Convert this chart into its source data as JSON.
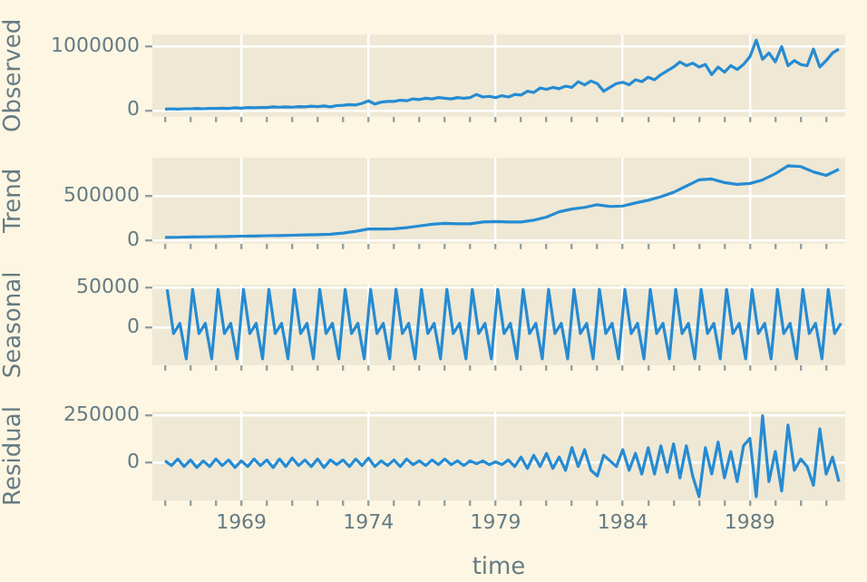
{
  "chart_data": [
    {
      "type": "line",
      "ylabel": "Observed",
      "color": "#268bd2",
      "grid": true,
      "tick_labels": "y",
      "xlim": [
        "1965-07",
        "1992-10"
      ],
      "ylim": [
        -100000,
        1190000
      ],
      "yticks": [
        0,
        1000000
      ],
      "xticks": [
        {
          "value": "1966",
          "label": null
        },
        {
          "value": "1967",
          "label": null
        },
        {
          "value": "1968",
          "label": null
        },
        "1969",
        {
          "value": "1970",
          "label": null
        },
        {
          "value": "1971",
          "label": null
        },
        {
          "value": "1972",
          "label": null
        },
        {
          "value": "1973",
          "label": null
        },
        "1974",
        {
          "value": "1975",
          "label": null
        },
        {
          "value": "1976",
          "label": null
        },
        {
          "value": "1977",
          "label": null
        },
        {
          "value": "1978",
          "label": null
        },
        "1979",
        {
          "value": "1980",
          "label": null
        },
        {
          "value": "1981",
          "label": null
        },
        {
          "value": "1982",
          "label": null
        },
        {
          "value": "1983",
          "label": null
        },
        "1984",
        {
          "value": "1985",
          "label": null
        },
        {
          "value": "1986",
          "label": null
        },
        {
          "value": "1987",
          "label": null
        },
        {
          "value": "1988",
          "label": null
        },
        "1989",
        {
          "value": "1990",
          "label": null
        },
        {
          "value": "1991",
          "label": null
        },
        {
          "value": "1992",
          "label": null
        }
      ],
      "x": [
        "1966-01",
        "1966-04",
        "1966-07",
        "1966-10",
        "1967-01",
        "1967-04",
        "1967-07",
        "1967-10",
        "1968-01",
        "1968-04",
        "1968-07",
        "1968-10",
        "1969-01",
        "1969-04",
        "1969-07",
        "1969-10",
        "1970-01",
        "1970-04",
        "1970-07",
        "1970-10",
        "1971-01",
        "1971-04",
        "1971-07",
        "1971-10",
        "1972-01",
        "1972-04",
        "1972-07",
        "1972-10",
        "1973-01",
        "1973-04",
        "1973-07",
        "1973-10",
        "1974-01",
        "1974-04",
        "1974-07",
        "1974-10",
        "1975-01",
        "1975-04",
        "1975-07",
        "1975-10",
        "1976-01",
        "1976-04",
        "1976-07",
        "1976-10",
        "1977-01",
        "1977-04",
        "1977-07",
        "1977-10",
        "1978-01",
        "1978-04",
        "1978-07",
        "1978-10",
        "1979-01",
        "1979-04",
        "1979-07",
        "1979-10",
        "1980-01",
        "1980-04",
        "1980-07",
        "1980-10",
        "1981-01",
        "1981-04",
        "1981-07",
        "1981-10",
        "1982-01",
        "1982-04",
        "1982-07",
        "1982-10",
        "1983-01",
        "1983-04",
        "1983-07",
        "1983-10",
        "1984-01",
        "1984-04",
        "1984-07",
        "1984-10",
        "1985-01",
        "1985-04",
        "1985-07",
        "1985-10",
        "1986-01",
        "1986-04",
        "1986-07",
        "1986-10",
        "1987-01",
        "1987-04",
        "1987-07",
        "1987-10",
        "1988-01",
        "1988-04",
        "1988-07",
        "1988-10",
        "1989-01",
        "1989-04",
        "1989-07",
        "1989-10",
        "1990-01",
        "1990-04",
        "1990-07",
        "1990-10",
        "1991-01",
        "1991-04",
        "1991-07",
        "1991-10",
        "1992-01",
        "1992-04",
        "1992-07"
      ],
      "values": [
        20000,
        25000,
        20000,
        25000,
        25000,
        30000,
        25000,
        30000,
        30000,
        35000,
        30000,
        40000,
        35000,
        45000,
        40000,
        45000,
        45000,
        55000,
        50000,
        55000,
        50000,
        60000,
        55000,
        65000,
        60000,
        70000,
        55000,
        75000,
        80000,
        90000,
        85000,
        110000,
        150000,
        100000,
        130000,
        140000,
        140000,
        160000,
        150000,
        180000,
        170000,
        190000,
        180000,
        200000,
        190000,
        180000,
        200000,
        190000,
        200000,
        250000,
        210000,
        220000,
        200000,
        230000,
        210000,
        250000,
        240000,
        300000,
        280000,
        350000,
        330000,
        360000,
        340000,
        380000,
        360000,
        450000,
        400000,
        460000,
        420000,
        300000,
        360000,
        420000,
        440000,
        400000,
        480000,
        450000,
        520000,
        480000,
        560000,
        620000,
        680000,
        760000,
        700000,
        740000,
        680000,
        720000,
        560000,
        680000,
        600000,
        700000,
        640000,
        720000,
        840000,
        1100000,
        800000,
        900000,
        760000,
        1000000,
        700000,
        780000,
        720000,
        700000,
        960000,
        680000,
        780000,
        900000,
        960000
      ]
    },
    {
      "type": "line",
      "ylabel": "Trend",
      "color": "#268bd2",
      "grid": true,
      "tick_labels": "y",
      "xlim": [
        "1965-07",
        "1992-10"
      ],
      "ylim": [
        -40000,
        930000
      ],
      "yticks": [
        0,
        500000
      ],
      "xticks": [
        {
          "value": "1966",
          "label": null
        },
        {
          "value": "1967",
          "label": null
        },
        {
          "value": "1968",
          "label": null
        },
        "1969",
        {
          "value": "1970",
          "label": null
        },
        {
          "value": "1971",
          "label": null
        },
        {
          "value": "1972",
          "label": null
        },
        {
          "value": "1973",
          "label": null
        },
        "1974",
        {
          "value": "1975",
          "label": null
        },
        {
          "value": "1976",
          "label": null
        },
        {
          "value": "1977",
          "label": null
        },
        {
          "value": "1978",
          "label": null
        },
        "1979",
        {
          "value": "1980",
          "label": null
        },
        {
          "value": "1981",
          "label": null
        },
        {
          "value": "1982",
          "label": null
        },
        {
          "value": "1983",
          "label": null
        },
        "1984",
        {
          "value": "1985",
          "label": null
        },
        {
          "value": "1986",
          "label": null
        },
        {
          "value": "1987",
          "label": null
        },
        {
          "value": "1988",
          "label": null
        },
        "1989",
        {
          "value": "1990",
          "label": null
        },
        {
          "value": "1991",
          "label": null
        },
        {
          "value": "1992",
          "label": null
        }
      ],
      "x": [
        "1966-01",
        "1966-07",
        "1967-01",
        "1967-07",
        "1968-01",
        "1968-07",
        "1969-01",
        "1969-07",
        "1970-01",
        "1970-07",
        "1971-01",
        "1971-07",
        "1972-01",
        "1972-07",
        "1973-01",
        "1973-07",
        "1974-01",
        "1974-07",
        "1975-01",
        "1975-07",
        "1976-01",
        "1976-07",
        "1977-01",
        "1977-07",
        "1978-01",
        "1978-07",
        "1979-01",
        "1979-07",
        "1980-01",
        "1980-07",
        "1981-01",
        "1981-07",
        "1982-01",
        "1982-07",
        "1983-01",
        "1983-07",
        "1984-01",
        "1984-07",
        "1985-01",
        "1985-07",
        "1986-01",
        "1986-07",
        "1987-01",
        "1987-07",
        "1988-01",
        "1988-07",
        "1989-01",
        "1989-07",
        "1990-01",
        "1990-07",
        "1991-01",
        "1991-07",
        "1992-01",
        "1992-07"
      ],
      "values": [
        30000,
        32000,
        35000,
        37000,
        40000,
        42000,
        45000,
        47000,
        50000,
        52000,
        55000,
        58000,
        62000,
        66000,
        80000,
        100000,
        125000,
        125000,
        128000,
        140000,
        160000,
        180000,
        190000,
        185000,
        185000,
        205000,
        210000,
        205000,
        205000,
        225000,
        260000,
        320000,
        350000,
        370000,
        400000,
        380000,
        385000,
        420000,
        450000,
        490000,
        540000,
        610000,
        680000,
        690000,
        650000,
        630000,
        640000,
        680000,
        750000,
        840000,
        830000,
        770000,
        730000,
        800000
      ]
    },
    {
      "type": "line",
      "ylabel": "Seasonal",
      "color": "#268bd2",
      "grid": true,
      "tick_labels": "y",
      "xlim": [
        "1965-07",
        "1992-10"
      ],
      "ylim": [
        -48000,
        54000
      ],
      "yticks": [
        0,
        50000
      ],
      "xticks": [
        {
          "value": "1966",
          "label": null
        },
        {
          "value": "1967",
          "label": null
        },
        {
          "value": "1968",
          "label": null
        },
        "1969",
        {
          "value": "1970",
          "label": null
        },
        {
          "value": "1971",
          "label": null
        },
        {
          "value": "1972",
          "label": null
        },
        {
          "value": "1973",
          "label": null
        },
        "1974",
        {
          "value": "1975",
          "label": null
        },
        {
          "value": "1976",
          "label": null
        },
        {
          "value": "1977",
          "label": null
        },
        {
          "value": "1978",
          "label": null
        },
        "1979",
        {
          "value": "1980",
          "label": null
        },
        {
          "value": "1981",
          "label": null
        },
        {
          "value": "1982",
          "label": null
        },
        {
          "value": "1983",
          "label": null
        },
        "1984",
        {
          "value": "1985",
          "label": null
        },
        {
          "value": "1986",
          "label": null
        },
        {
          "value": "1987",
          "label": null
        },
        {
          "value": "1988",
          "label": null
        },
        "1989",
        {
          "value": "1990",
          "label": null
        },
        {
          "value": "1991",
          "label": null
        },
        {
          "value": "1992",
          "label": null
        }
      ],
      "x": [
        "1966-02",
        "1966-05",
        "1966-08",
        "1966-11",
        "1967-02",
        "1967-05",
        "1967-08",
        "1967-11",
        "1968-02",
        "1968-05",
        "1968-08",
        "1968-11",
        "1969-02",
        "1969-05",
        "1969-08",
        "1969-11",
        "1970-02",
        "1970-05",
        "1970-08",
        "1970-11",
        "1971-02",
        "1971-05",
        "1971-08",
        "1971-11",
        "1972-02",
        "1972-05",
        "1972-08",
        "1972-11",
        "1973-02",
        "1973-05",
        "1973-08",
        "1973-11",
        "1974-02",
        "1974-05",
        "1974-08",
        "1974-11",
        "1975-02",
        "1975-05",
        "1975-08",
        "1975-11",
        "1976-02",
        "1976-05",
        "1976-08",
        "1976-11",
        "1977-02",
        "1977-05",
        "1977-08",
        "1977-11",
        "1978-02",
        "1978-05",
        "1978-08",
        "1978-11",
        "1979-02",
        "1979-05",
        "1979-08",
        "1979-11",
        "1980-02",
        "1980-05",
        "1980-08",
        "1980-11",
        "1981-02",
        "1981-05",
        "1981-08",
        "1981-11",
        "1982-02",
        "1982-05",
        "1982-08",
        "1982-11",
        "1983-02",
        "1983-05",
        "1983-08",
        "1983-11",
        "1984-02",
        "1984-05",
        "1984-08",
        "1984-11",
        "1985-02",
        "1985-05",
        "1985-08",
        "1985-11",
        "1986-02",
        "1986-05",
        "1986-08",
        "1986-11",
        "1987-02",
        "1987-05",
        "1987-08",
        "1987-11",
        "1988-02",
        "1988-05",
        "1988-08",
        "1988-11",
        "1989-02",
        "1989-05",
        "1989-08",
        "1989-11",
        "1990-02",
        "1990-05",
        "1990-08",
        "1990-11",
        "1991-02",
        "1991-05",
        "1991-08",
        "1991-11",
        "1992-02",
        "1992-05",
        "1992-08"
      ],
      "values": [
        48000,
        -8000,
        5000,
        -40000,
        48000,
        -8000,
        5000,
        -40000,
        48000,
        -8000,
        5000,
        -40000,
        48000,
        -8000,
        5000,
        -40000,
        48000,
        -8000,
        5000,
        -40000,
        48000,
        -8000,
        5000,
        -40000,
        48000,
        -8000,
        5000,
        -40000,
        48000,
        -8000,
        5000,
        -40000,
        48000,
        -8000,
        5000,
        -40000,
        48000,
        -8000,
        5000,
        -40000,
        48000,
        -8000,
        5000,
        -40000,
        48000,
        -8000,
        5000,
        -40000,
        48000,
        -8000,
        5000,
        -40000,
        48000,
        -8000,
        5000,
        -40000,
        48000,
        -8000,
        5000,
        -40000,
        48000,
        -8000,
        5000,
        -40000,
        48000,
        -8000,
        5000,
        -40000,
        48000,
        -8000,
        5000,
        -40000,
        48000,
        -8000,
        5000,
        -40000,
        48000,
        -8000,
        5000,
        -40000,
        48000,
        -8000,
        5000,
        -40000,
        48000,
        -8000,
        5000,
        -40000,
        48000,
        -8000,
        5000,
        -40000,
        48000,
        -8000,
        5000,
        -40000,
        48000,
        -8000,
        5000,
        -40000,
        48000,
        -8000,
        5000,
        -40000,
        48000,
        -8000,
        5000
      ]
    },
    {
      "type": "line",
      "ylabel": "Residual",
      "xlabel": "time",
      "color": "#268bd2",
      "grid": true,
      "xlim": [
        "1965-07",
        "1992-10"
      ],
      "ylim": [
        -200000,
        272000
      ],
      "yticks": [
        0,
        250000
      ],
      "xticks": [
        {
          "value": "1966",
          "label": null
        },
        {
          "value": "1967",
          "label": null
        },
        {
          "value": "1968",
          "label": null
        },
        "1969",
        {
          "value": "1970",
          "label": null
        },
        {
          "value": "1971",
          "label": null
        },
        {
          "value": "1972",
          "label": null
        },
        {
          "value": "1973",
          "label": null
        },
        "1974",
        {
          "value": "1975",
          "label": null
        },
        {
          "value": "1976",
          "label": null
        },
        {
          "value": "1977",
          "label": null
        },
        {
          "value": "1978",
          "label": null
        },
        "1979",
        {
          "value": "1980",
          "label": null
        },
        {
          "value": "1981",
          "label": null
        },
        {
          "value": "1982",
          "label": null
        },
        {
          "value": "1983",
          "label": null
        },
        "1984",
        {
          "value": "1985",
          "label": null
        },
        {
          "value": "1986",
          "label": null
        },
        {
          "value": "1987",
          "label": null
        },
        {
          "value": "1988",
          "label": null
        },
        "1989",
        {
          "value": "1990",
          "label": null
        },
        {
          "value": "1991",
          "label": null
        },
        {
          "value": "1992",
          "label": null
        }
      ],
      "x": [
        "1966-01",
        "1966-04",
        "1966-07",
        "1966-10",
        "1967-01",
        "1967-04",
        "1967-07",
        "1967-10",
        "1968-01",
        "1968-04",
        "1968-07",
        "1968-10",
        "1969-01",
        "1969-04",
        "1969-07",
        "1969-10",
        "1970-01",
        "1970-04",
        "1970-07",
        "1970-10",
        "1971-01",
        "1971-04",
        "1971-07",
        "1971-10",
        "1972-01",
        "1972-04",
        "1972-07",
        "1972-10",
        "1973-01",
        "1973-04",
        "1973-07",
        "1973-10",
        "1974-01",
        "1974-04",
        "1974-07",
        "1974-10",
        "1975-01",
        "1975-04",
        "1975-07",
        "1975-10",
        "1976-01",
        "1976-04",
        "1976-07",
        "1976-10",
        "1977-01",
        "1977-04",
        "1977-07",
        "1977-10",
        "1978-01",
        "1978-04",
        "1978-07",
        "1978-10",
        "1979-01",
        "1979-04",
        "1979-07",
        "1979-10",
        "1980-01",
        "1980-04",
        "1980-07",
        "1980-10",
        "1981-01",
        "1981-04",
        "1981-07",
        "1981-10",
        "1982-01",
        "1982-04",
        "1982-07",
        "1982-10",
        "1983-01",
        "1983-04",
        "1983-07",
        "1983-10",
        "1984-01",
        "1984-04",
        "1984-07",
        "1984-10",
        "1985-01",
        "1985-04",
        "1985-07",
        "1985-10",
        "1986-01",
        "1986-04",
        "1986-07",
        "1986-10",
        "1987-01",
        "1987-04",
        "1987-07",
        "1987-10",
        "1988-01",
        "1988-04",
        "1988-07",
        "1988-10",
        "1989-01",
        "1989-04",
        "1989-07",
        "1989-10",
        "1990-01",
        "1990-04",
        "1990-07",
        "1990-10",
        "1991-01",
        "1991-04",
        "1991-07",
        "1991-10",
        "1992-01",
        "1992-04",
        "1992-07"
      ],
      "values": [
        10000,
        -15000,
        20000,
        -20000,
        15000,
        -25000,
        10000,
        -20000,
        20000,
        -15000,
        15000,
        -25000,
        10000,
        -20000,
        20000,
        -15000,
        15000,
        -25000,
        20000,
        -20000,
        25000,
        -15000,
        15000,
        -20000,
        20000,
        -25000,
        15000,
        -10000,
        15000,
        -20000,
        20000,
        -15000,
        25000,
        -20000,
        10000,
        -15000,
        15000,
        -20000,
        20000,
        -10000,
        10000,
        -15000,
        15000,
        -10000,
        20000,
        -10000,
        10000,
        -15000,
        10000,
        -5000,
        10000,
        -10000,
        5000,
        -10000,
        15000,
        -20000,
        30000,
        -30000,
        40000,
        -20000,
        50000,
        -30000,
        30000,
        -40000,
        80000,
        -20000,
        70000,
        -40000,
        -70000,
        40000,
        10000,
        -20000,
        70000,
        -40000,
        50000,
        -60000,
        80000,
        -60000,
        90000,
        -50000,
        100000,
        -80000,
        90000,
        -70000,
        -180000,
        80000,
        -60000,
        110000,
        -80000,
        60000,
        -100000,
        90000,
        130000,
        -180000,
        250000,
        -100000,
        60000,
        -150000,
        200000,
        -40000,
        20000,
        -20000,
        -120000,
        180000,
        -60000,
        30000,
        -100000
      ]
    }
  ]
}
